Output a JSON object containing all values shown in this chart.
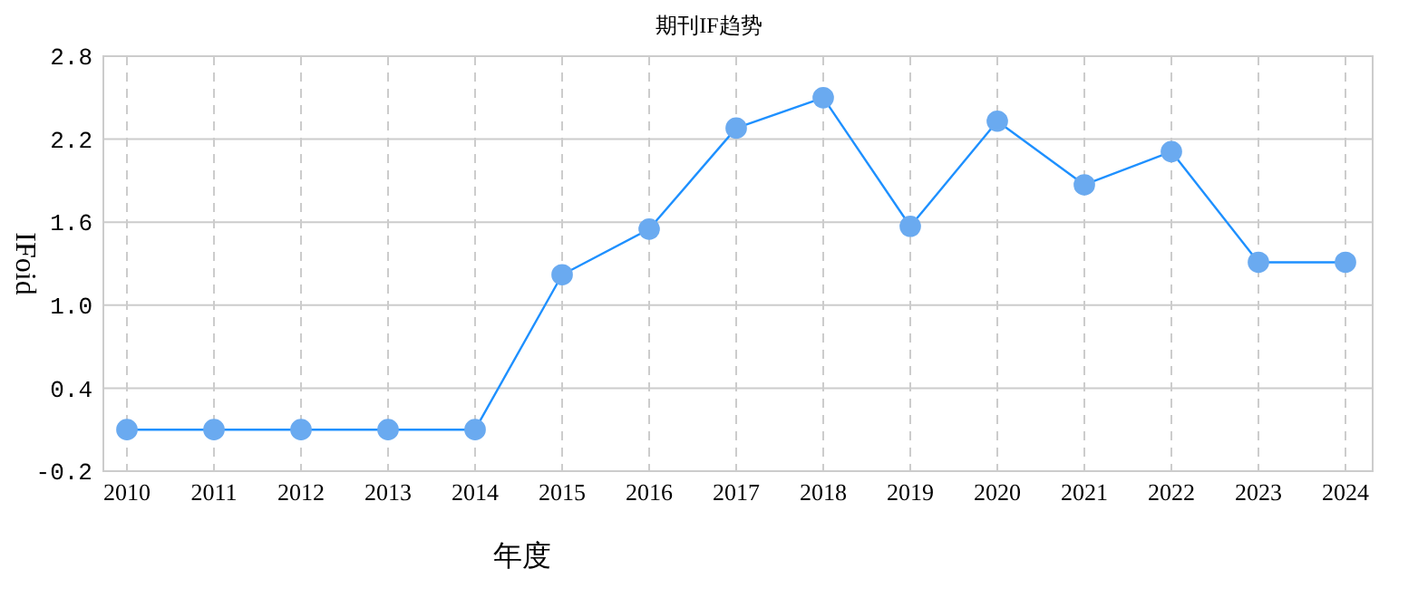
{
  "chart_data": {
    "type": "line",
    "title": "期刊IF趋势",
    "xlabel": "年度",
    "ylabel": "IFoid",
    "categories": [
      "2010",
      "2011",
      "2012",
      "2013",
      "2014",
      "2015",
      "2016",
      "2017",
      "2018",
      "2019",
      "2020",
      "2021",
      "2022",
      "2023",
      "2024"
    ],
    "series": [
      {
        "color": "#1e90ff",
        "values": [
          0.1,
          0.1,
          0.1,
          0.1,
          0.1,
          1.22,
          1.55,
          2.28,
          2.5,
          1.57,
          2.33,
          1.87,
          2.11,
          1.31,
          1.31
        ]
      }
    ],
    "ylim": [
      -0.2,
      2.8
    ],
    "yticks": [
      -0.2,
      0.4,
      {
        "value": 1,
        "label": "1.0"
      },
      1.6,
      2.2,
      2.8
    ],
    "grid": true,
    "marker": "circle",
    "line_style": "solid"
  }
}
